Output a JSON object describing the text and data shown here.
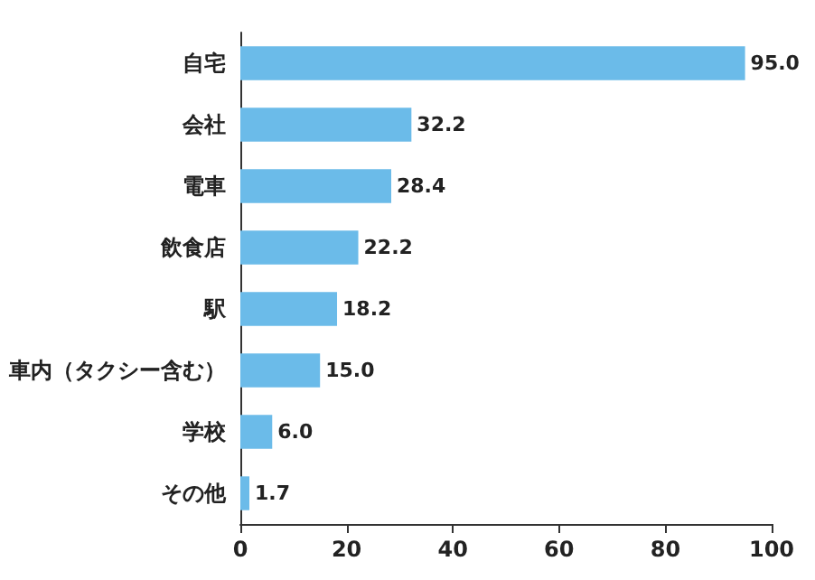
{
  "chart_data": {
    "type": "bar",
    "orientation": "horizontal",
    "categories": [
      "自宅",
      "会社",
      "電車",
      "飲食店",
      "駅",
      "車内（タクシー含む）",
      "学校",
      "その他"
    ],
    "values": [
      95.0,
      32.2,
      28.4,
      22.2,
      18.2,
      15.0,
      6.0,
      1.7
    ],
    "value_labels": [
      "95.0",
      "32.2",
      "28.4",
      "22.2",
      "18.2",
      "15.0",
      "6.0",
      "1.7"
    ],
    "color": "#6bbbe9",
    "xlim": [
      0,
      100
    ],
    "xticks": [
      0,
      20,
      40,
      60,
      80,
      100
    ],
    "grid": false
  }
}
